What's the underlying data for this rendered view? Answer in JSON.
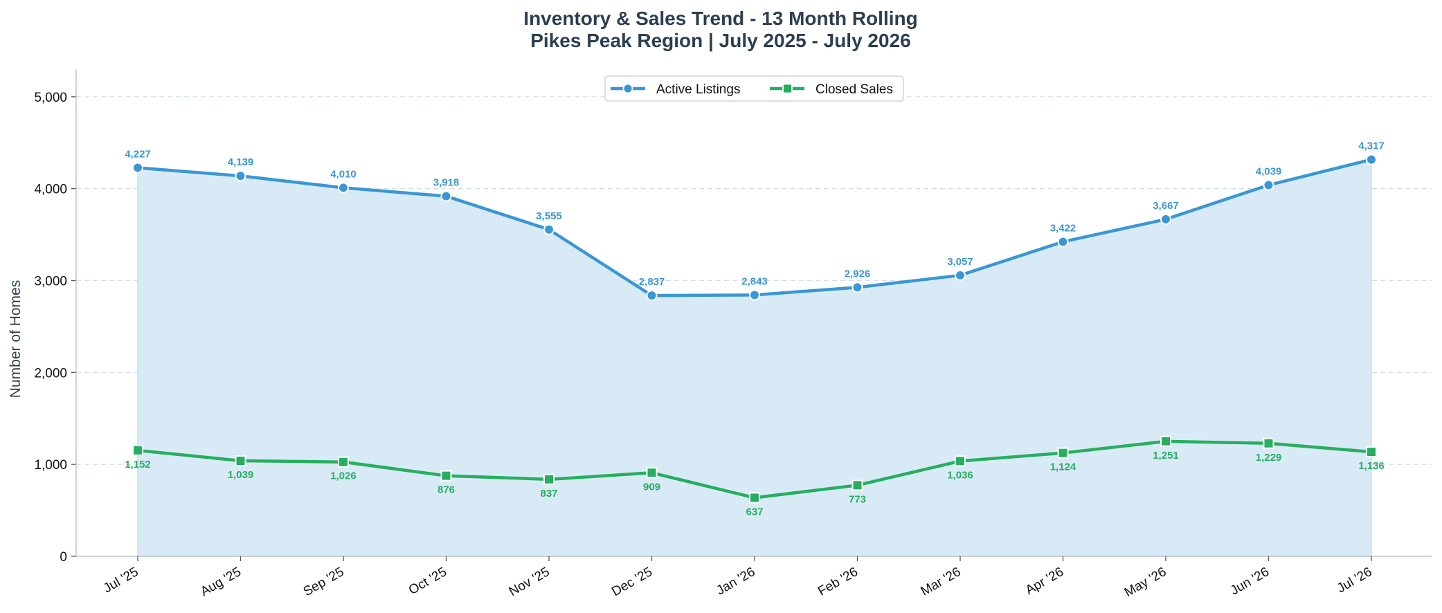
{
  "chart_data": {
    "type": "line",
    "title": "Inventory & Sales Trend - 13 Month Rolling",
    "subtitle": "Pikes Peak Region | July 2025 - July 2026",
    "xlabel": "",
    "ylabel": "Number of Homes",
    "ylim": [
      0,
      5300
    ],
    "yticks": [
      0,
      1000,
      2000,
      3000,
      4000,
      5000
    ],
    "ytick_labels": [
      "0",
      "1,000",
      "2,000",
      "3,000",
      "4,000",
      "5,000"
    ],
    "grid": "horizontal dashed",
    "legend_position": "top-center",
    "categories": [
      "Jul '25",
      "Aug '25",
      "Sep '25",
      "Oct '25",
      "Nov '25",
      "Dec '25",
      "Jan '26",
      "Feb '26",
      "Mar '26",
      "Apr '26",
      "May '26",
      "Jun '26",
      "Jul '26"
    ],
    "series": [
      {
        "name": "Active Listings",
        "color": "#3a97d4",
        "fill": "#d9eaf7",
        "marker": "circle",
        "label_position": "above",
        "values": [
          4227,
          4139,
          4010,
          3918,
          3555,
          2837,
          2843,
          2926,
          3057,
          3422,
          3667,
          4039,
          4317
        ],
        "labels": [
          "4,227",
          "4,139",
          "4,010",
          "3,918",
          "3,555",
          "2,837",
          "2,843",
          "2,926",
          "3,057",
          "3,422",
          "3,667",
          "4,039",
          "4,317"
        ]
      },
      {
        "name": "Closed Sales",
        "color": "#27ae60",
        "marker": "square",
        "label_position": "below",
        "values": [
          1152,
          1039,
          1026,
          876,
          837,
          909,
          637,
          773,
          1036,
          1124,
          1251,
          1229,
          1136
        ],
        "labels": [
          "1,152",
          "1,039",
          "1,026",
          "876",
          "837",
          "909",
          "637",
          "773",
          "1,036",
          "1,124",
          "1,251",
          "1,229",
          "1,136"
        ]
      }
    ]
  }
}
